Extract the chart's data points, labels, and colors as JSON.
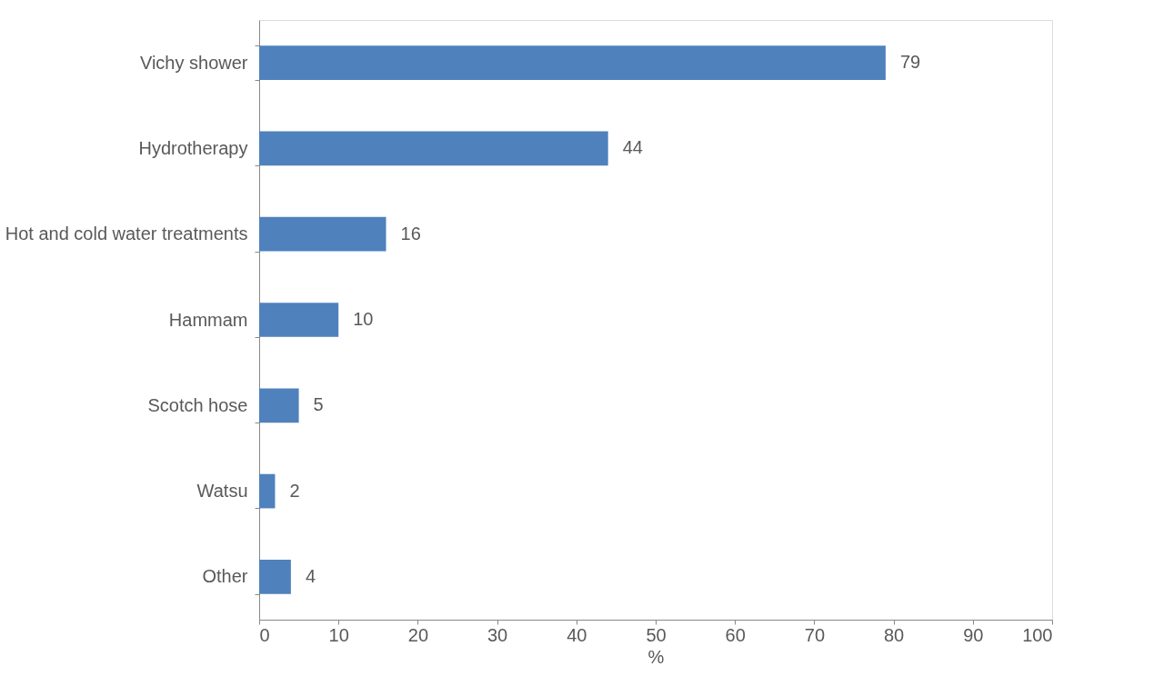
{
  "chart_data": {
    "type": "bar",
    "orientation": "horizontal",
    "xlabel": "%",
    "categories": [
      "Vichy shower",
      "Hydrotherapy",
      "Hot and cold water treatments",
      "Hammam",
      "Scotch hose",
      "Watsu",
      "Other"
    ],
    "values": [
      79,
      44,
      16,
      10,
      5,
      2,
      4
    ],
    "color": "#4f81bd",
    "xlim": [
      0,
      100
    ],
    "xticks": [
      0,
      10,
      20,
      30,
      40,
      50,
      60,
      70,
      80,
      90,
      100
    ],
    "data_labels": true
  }
}
